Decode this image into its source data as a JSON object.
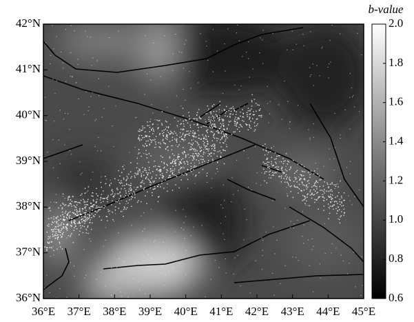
{
  "chart_data": {
    "type": "map",
    "xlim": [
      36,
      45
    ],
    "ylim": [
      36,
      42
    ],
    "xticks": [
      {
        "value": 36,
        "label": "36°E"
      },
      {
        "value": 37,
        "label": "37°E"
      },
      {
        "value": 38,
        "label": "38°E"
      },
      {
        "value": 39,
        "label": "39°E"
      },
      {
        "value": 40,
        "label": "40°E"
      },
      {
        "value": 41,
        "label": "41°E"
      },
      {
        "value": 42,
        "label": "42°E"
      },
      {
        "value": 43,
        "label": "43°E"
      },
      {
        "value": 44,
        "label": "44°E"
      },
      {
        "value": 45,
        "label": "45°E"
      }
    ],
    "yticks": [
      {
        "value": 36,
        "label": "36°N"
      },
      {
        "value": 37,
        "label": "37°N"
      },
      {
        "value": 38,
        "label": "38°N"
      },
      {
        "value": 39,
        "label": "39°N"
      },
      {
        "value": 40,
        "label": "40°N"
      },
      {
        "value": 41,
        "label": "41°N"
      },
      {
        "value": 42,
        "label": "42°N"
      }
    ],
    "colorbar": {
      "title": "b-value",
      "lim": [
        0.6,
        2.0
      ],
      "ticks": [
        0.6,
        0.8,
        1.0,
        1.2,
        1.4,
        1.6,
        1.8,
        2.0
      ],
      "tick_labels": [
        "0.6",
        "0.8",
        "1.0",
        "1.2",
        "1.4",
        "1.6",
        "1.8",
        "2.0"
      ]
    }
  }
}
